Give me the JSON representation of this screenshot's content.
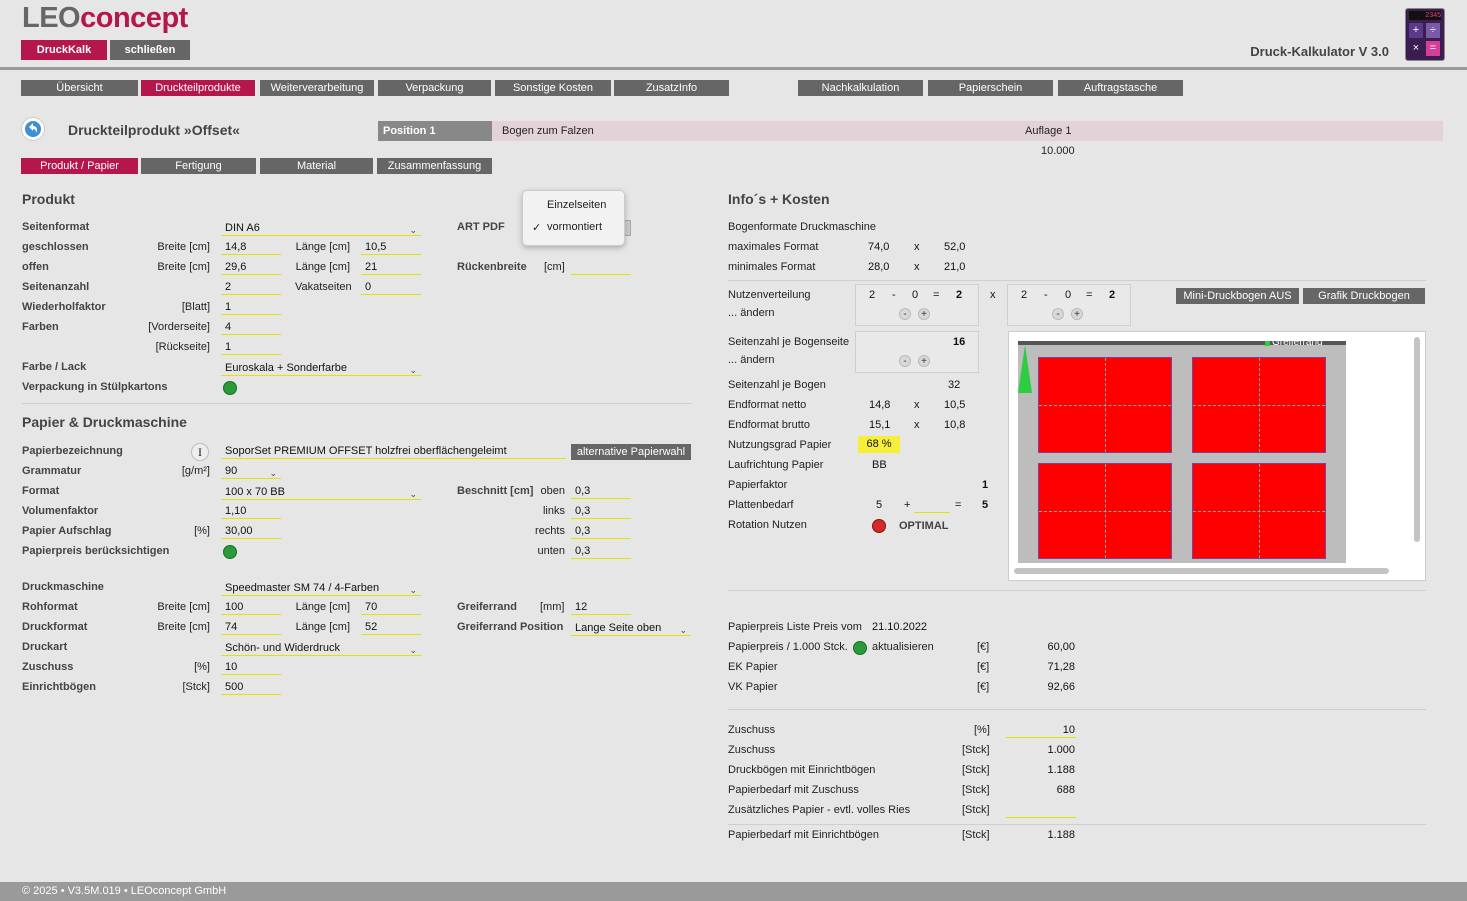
{
  "brand": {
    "part1": "LEO",
    "part2": "concept"
  },
  "app_title": "Druck-Kalkulator V 3.0",
  "app_icon": {
    "display": "2345"
  },
  "top_buttons": {
    "druckkalk": "DruckKalk",
    "close": "schließen"
  },
  "main_nav": [
    "Übersicht",
    "Druckteilprodukte",
    "Weiterverarbeitung",
    "Verpackung",
    "Sonstige Kosten",
    "ZusatzInfo"
  ],
  "right_nav": [
    "Nachkalkulation",
    "Papierschein",
    "Auftragstasche"
  ],
  "page_title": "Druckteilprodukt »Offset«",
  "position_bar": {
    "position": "Position 1",
    "description": "Bogen zum Falzen",
    "auflage_label": "Auflage 1",
    "auflage_value": "10.000"
  },
  "sub_tabs": [
    "Produkt / Papier",
    "Fertigung",
    "Material",
    "Zusammenfassung"
  ],
  "produkt": {
    "title": "Produkt",
    "seitenformat_label": "Seitenformat",
    "seitenformat_value": "DIN A6",
    "geschlossen_label": "geschlossen",
    "breite_cm": "Breite [cm]",
    "laenge_cm": "Länge [cm]",
    "geschlossen_breite": "14,8",
    "geschlossen_laenge": "10,5",
    "offen_label": "offen",
    "offen_breite": "29,6",
    "offen_laenge": "21",
    "seitenanzahl_label": "Seitenanzahl",
    "seitenanzahl_value": "2",
    "vakatseiten_label": "Vakatseiten",
    "vakatseiten_value": "0",
    "wiederholfaktor_label": "Wiederholfaktor",
    "wiederholfaktor_unit": "[Blatt]",
    "wiederholfaktor_value": "1",
    "farben_label": "Farben",
    "vorderseite_unit": "[Vorderseite]",
    "vorderseite_value": "4",
    "rueckseite_unit": "[Rückseite]",
    "rueckseite_value": "1",
    "farbe_lack_label": "Farbe / Lack",
    "farbe_lack_value": "Euroskala + Sonderfarbe",
    "verpackung_label": "Verpackung in Stülpkartons",
    "art_pdf_label": "ART PDF",
    "ruecken_label": "Rückenbreite",
    "ruecken_unit": "[cm]",
    "ruecken_value": ""
  },
  "popup": {
    "options": [
      "Einzelseiten",
      "vormontiert"
    ],
    "checked": "vormontiert",
    "check_mark": "✓"
  },
  "papier": {
    "title": "Papier & Druckmaschine",
    "bezeichnung_label": "Papierbezeichnung",
    "info_icon": "I",
    "bezeichnung_value": "SoporSet PREMIUM OFFSET holzfrei oberflächengeleimt",
    "alt_button": "alternative Papierwahl",
    "grammatur_label": "Grammatur",
    "grammatur_unit": "[g/m²]",
    "grammatur_value": "90",
    "format_label": "Format",
    "format_value": "100 x 70 BB",
    "volumen_label": "Volumenfaktor",
    "volumen_value": "1,10",
    "aufschlag_label": "Papier Aufschlag",
    "aufschlag_unit": "[%]",
    "aufschlag_value": "30,00",
    "preis_label": "Papierpreis berücksichtigen",
    "beschnitt_label": "Beschnitt [cm]",
    "beschnitt": [
      {
        "label": "oben",
        "value": "0,3"
      },
      {
        "label": "links",
        "value": "0,3"
      },
      {
        "label": "rechts",
        "value": "0,3"
      },
      {
        "label": "unten",
        "value": "0,3"
      }
    ]
  },
  "maschine": {
    "druckmaschine_label": "Druckmaschine",
    "druckmaschine_value": "Speedmaster SM 74 / 4-Farben",
    "rohformat_label": "Rohformat",
    "rohformat_breite": "100",
    "rohformat_laenge": "70",
    "druckformat_label": "Druckformat",
    "druckformat_breite": "74",
    "druckformat_laenge": "52",
    "druckart_label": "Druckart",
    "druckart_value": "Schön- und Widerdruck",
    "zuschuss_label": "Zuschuss",
    "zuschuss_unit": "[%]",
    "zuschuss_value": "10",
    "einricht_label": "Einrichtbögen",
    "einricht_unit": "[Stck]",
    "einricht_value": "500",
    "greiferrand_label": "Greiferrand",
    "greiferrand_unit": "[mm]",
    "greiferrand_value": "12",
    "greiferpos_label": "Greiferrand Position",
    "greiferpos_value": "Lange Seite oben"
  },
  "info": {
    "title": "Info´s + Kosten",
    "bogenformate": "Bogenformate Druckmaschine",
    "max_label": "maximales Format",
    "max_w": "74,0",
    "max_h": "52,0",
    "min_label": "minimales Format",
    "min_w": "28,0",
    "min_h": "21,0",
    "x": "x",
    "nutzen_label": "Nutzenverteilung",
    "aendern": "... ändern",
    "nutzen1": [
      "2",
      "-",
      "0",
      "=",
      "2"
    ],
    "nutzen2": [
      "2",
      "-",
      "0",
      "=",
      "2"
    ],
    "mini_btn": "Mini-Druckbogen AUS",
    "grafik_btn": "Grafik Druckbogen",
    "seiten_bogenseite_label": "Seitenzahl je Bogenseite",
    "seiten_bogenseite_value": "16",
    "seiten_bogen_label": "Seitenzahl je Bogen",
    "seiten_bogen_value": "32",
    "endformat_netto_label": "Endformat netto",
    "netto_w": "14,8",
    "netto_h": "10,5",
    "endformat_brutto_label": "Endformat brutto",
    "brutto_w": "15,1",
    "brutto_h": "10,8",
    "nutzungsgrad_label": "Nutzungsgrad Papier",
    "nutzungsgrad_value": "68 %",
    "laufrichtung_label": "Laufrichtung Papier",
    "laufrichtung_value": "BB",
    "papierfaktor_label": "Papierfaktor",
    "papierfaktor_value": "1",
    "platten_label": "Plattenbedarf",
    "platten_a": "5",
    "platten_plus": "+",
    "platten_eq": "=",
    "platten_total": "5",
    "rotation_label": "Rotation Nutzen",
    "rotation_value": "OPTIMAL",
    "greiferrand_text": "Greiferrand",
    "plus": "+",
    "minus": "-"
  },
  "kosten": {
    "liste_label": "Papierpreis Liste Preis vom",
    "liste_date": "21.10.2022",
    "preis_1000_label": "Papierpreis / 1.000 Stck.",
    "aktualisieren": "aktualisieren",
    "euro": "[€]",
    "preis_1000_value": "60,00",
    "ek_label": "EK Papier",
    "ek_value": "71,28",
    "vk_label": "VK Papier",
    "vk_value": "92,66",
    "rows": [
      {
        "label": "Zuschuss",
        "unit": "[%]",
        "value": "10"
      },
      {
        "label": "Zuschuss",
        "unit": "[Stck]",
        "value": "1.000"
      },
      {
        "label": "Druckbögen mit Einrichtbögen",
        "unit": "[Stck]",
        "value": "1.188"
      },
      {
        "label": "Papierbedarf mit Zuschuss",
        "unit": "[Stck]",
        "value": "688"
      },
      {
        "label": "Zusätzliches Papier - evtl. volles Ries",
        "unit": "[Stck]",
        "value": ""
      }
    ],
    "total_label": "Papierbedarf mit Einrichtbögen",
    "total_unit": "[Stck]",
    "total_value": "1.188"
  },
  "footer": "© 2025 • V3.5M.019 • LEOconcept GmbH",
  "colors": {
    "accent": "#b5164c",
    "nav": "#666666",
    "highlight": "#f5ef3a"
  }
}
